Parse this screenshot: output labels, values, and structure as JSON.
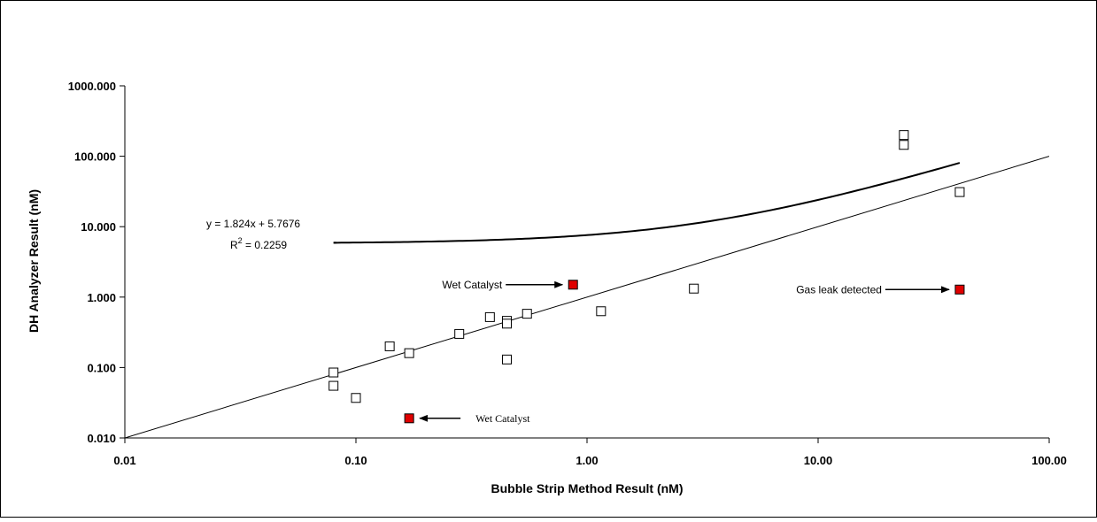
{
  "colors": {
    "marker_open": "#ffffff",
    "marker_flagged": "#e00000",
    "line": "#000000",
    "background": "#ffffff"
  },
  "chart_data": {
    "type": "scatter",
    "title": "",
    "xlabel": "Bubble Strip Method Result  (nM)",
    "ylabel": "DH Analyzer Result (nM)",
    "x_scale": "log",
    "y_scale": "log",
    "xlim": [
      0.01,
      100
    ],
    "ylim": [
      0.01,
      1000
    ],
    "x_ticks": [
      "0.01",
      "0.10",
      "1.00",
      "10.00",
      "100.00"
    ],
    "y_ticks": [
      "0.010",
      "0.100",
      "1.000",
      "10.000",
      "100.000",
      "1000.000"
    ],
    "grid": false,
    "legend": false,
    "series": [
      {
        "marker": "open-square",
        "points": [
          [
            0.08,
            0.085
          ],
          [
            0.08,
            0.055
          ],
          [
            0.1,
            0.037
          ],
          [
            0.14,
            0.2
          ],
          [
            0.17,
            0.16
          ],
          [
            0.28,
            0.3
          ],
          [
            0.38,
            0.52
          ],
          [
            0.45,
            0.46
          ],
          [
            0.45,
            0.42
          ],
          [
            0.45,
            0.13
          ],
          [
            0.55,
            0.58
          ],
          [
            1.15,
            0.63
          ],
          [
            2.9,
            1.32
          ],
          [
            23.5,
            200
          ],
          [
            23.5,
            145
          ],
          [
            41,
            31
          ]
        ]
      },
      {
        "marker": "filled-square",
        "points": [
          [
            0.17,
            0.019
          ],
          [
            0.87,
            1.5
          ],
          [
            41,
            1.28
          ]
        ]
      }
    ],
    "reference_line": {
      "label": "",
      "points": [
        [
          0.01,
          0.01
        ],
        [
          100,
          100
        ]
      ]
    },
    "trend_curve": {
      "equation": "y = 1.824x + 5.7676",
      "r2_prefix": "R",
      "r2_sup": "2",
      "r2_suffix": " = 0.2259",
      "x_from": 0.08,
      "x_to": 41,
      "slope": 1.824,
      "intercept": 5.7676
    },
    "annotations": [
      {
        "text": "Wet Catalyst",
        "point": [
          0.87,
          1.5
        ]
      },
      {
        "text": "Wet Catalyst",
        "point": [
          0.17,
          0.019
        ]
      },
      {
        "text": "Gas leak detected",
        "point": [
          41,
          1.28
        ]
      }
    ]
  }
}
